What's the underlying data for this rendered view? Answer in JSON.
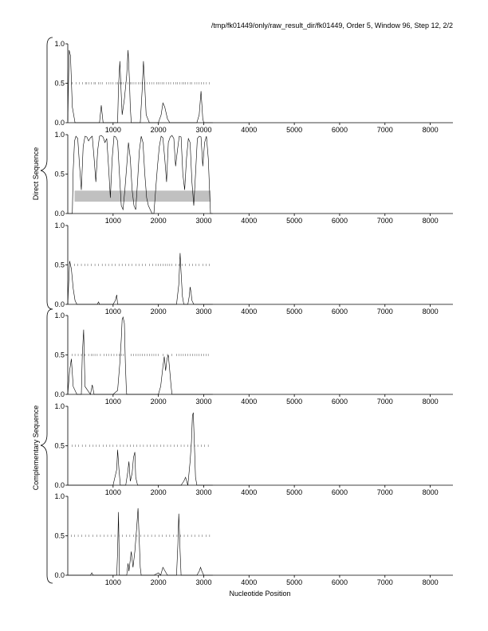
{
  "title": "/tmp/fk01449/only/raw_result_dir/fk01449, Order 5, Window 96, Step 12, 2/2",
  "xlabel": "Nucleotide Position",
  "group_labels": [
    "Direct Sequence",
    "Complementary Sequence"
  ],
  "chart_data": {
    "type": "line",
    "x_range": [
      0,
      8500
    ],
    "x_ticks": [
      1000,
      2000,
      3000,
      4000,
      5000,
      6000,
      7000,
      8000
    ],
    "panels": [
      {
        "group": "Direct Sequence",
        "ylim": [
          0,
          1
        ],
        "y_ticks": [
          0.0,
          0.5,
          1.0
        ],
        "marker_ticks_x": [
          100,
          180,
          260,
          330,
          390,
          420,
          470,
          520,
          580,
          610,
          680,
          720,
          760,
          850,
          900,
          950,
          1000,
          1060,
          1100,
          1150,
          1190,
          1230,
          1280,
          1330,
          1380,
          1420,
          1460,
          1500,
          1560,
          1600,
          1640,
          1700,
          1750,
          1800,
          1850,
          1900,
          1960,
          2000,
          2040,
          2080,
          2120,
          2180,
          2230,
          2270,
          2330,
          2380,
          2420,
          2470,
          2520,
          2560,
          2600,
          2650,
          2700,
          2740,
          2800,
          2850,
          2900,
          2950,
          3000,
          3060,
          3120
        ],
        "x": [
          0,
          30,
          60,
          100,
          160,
          700,
          740,
          780,
          1000,
          1100,
          1120,
          1150,
          1180,
          1200,
          1250,
          1300,
          1330,
          1360,
          1380,
          1400,
          1600,
          1640,
          1670,
          1700,
          1730,
          1800,
          2000,
          2060,
          2100,
          2140,
          2200,
          2250,
          2850,
          2900,
          2940,
          2980,
          3000,
          3200
        ],
        "y": [
          0.02,
          0.92,
          0.85,
          0.2,
          0.0,
          0.0,
          0.22,
          0.0,
          0.0,
          0.0,
          0.45,
          0.78,
          0.35,
          0.1,
          0.3,
          0.6,
          0.92,
          0.55,
          0.2,
          0.0,
          0.0,
          0.4,
          0.78,
          0.45,
          0.1,
          0.0,
          0.0,
          0.1,
          0.25,
          0.2,
          0.05,
          0.0,
          0.0,
          0.1,
          0.4,
          0.05,
          0.0,
          0.0
        ]
      },
      {
        "group": "Direct Sequence",
        "ylim": [
          0,
          1
        ],
        "y_ticks": [
          0.0,
          0.5,
          1.0
        ],
        "band": {
          "x0": 150,
          "x1": 3150,
          "y0": 0.15,
          "y1": 0.29
        },
        "x": [
          0,
          100,
          120,
          150,
          180,
          220,
          260,
          300,
          340,
          380,
          420,
          460,
          500,
          540,
          580,
          620,
          660,
          700,
          740,
          780,
          820,
          860,
          900,
          940,
          980,
          1020,
          1060,
          1100,
          1140,
          1180,
          1220,
          1260,
          1300,
          1340,
          1380,
          1420,
          1460,
          1500,
          1540,
          1580,
          1620,
          1660,
          1700,
          1740,
          1780,
          1820,
          1860,
          1900,
          1940,
          1980,
          2020,
          2060,
          2100,
          2140,
          2180,
          2220,
          2260,
          2300,
          2340,
          2380,
          2420,
          2460,
          2500,
          2540,
          2580,
          2620,
          2660,
          2700,
          2740,
          2780,
          2820,
          2860,
          2900,
          2940,
          2980,
          3020,
          3060,
          3100,
          3150,
          3200
        ],
        "y": [
          0.0,
          0.0,
          0.55,
          0.92,
          0.98,
          0.95,
          0.6,
          0.3,
          0.85,
          0.98,
          0.97,
          0.92,
          0.96,
          0.98,
          0.7,
          0.4,
          0.8,
          0.98,
          0.99,
          0.97,
          0.9,
          0.95,
          0.6,
          0.2,
          0.7,
          0.98,
          0.97,
          0.92,
          0.5,
          0.1,
          0.05,
          0.3,
          0.6,
          0.9,
          0.7,
          0.3,
          0.1,
          0.05,
          0.4,
          0.8,
          0.98,
          0.9,
          0.5,
          0.2,
          0.1,
          0.05,
          0.0,
          0.0,
          0.3,
          0.6,
          0.85,
          0.98,
          0.96,
          0.7,
          0.4,
          0.9,
          0.97,
          0.99,
          0.95,
          0.6,
          0.8,
          0.98,
          0.97,
          0.5,
          0.3,
          0.7,
          0.95,
          0.9,
          0.4,
          0.1,
          0.5,
          0.95,
          0.98,
          0.97,
          0.6,
          0.9,
          0.98,
          0.7,
          0.0,
          0.0
        ]
      },
      {
        "group": "Direct Sequence",
        "ylim": [
          0,
          1
        ],
        "y_ticks": [
          0.0,
          0.5,
          1.0
        ],
        "marker_ticks_x": [
          150,
          220,
          300,
          380,
          440,
          520,
          600,
          680,
          760,
          830,
          900,
          980,
          1050,
          1130,
          1200,
          1280,
          1350,
          1420,
          1500,
          1570,
          1650,
          1720,
          1800,
          1870,
          1950,
          2000,
          2050,
          2100,
          2150,
          2200,
          2250,
          2300,
          2380,
          2450,
          2520,
          2600,
          2680,
          2750,
          2830,
          2900,
          2980,
          3050,
          3120
        ],
        "x": [
          0,
          40,
          80,
          120,
          160,
          200,
          650,
          680,
          700,
          1000,
          1050,
          1080,
          1100,
          2400,
          2450,
          2480,
          2500,
          2530,
          2560,
          2600,
          2650,
          2680,
          2700,
          2720,
          2740,
          2780,
          3200
        ],
        "y": [
          0.0,
          0.55,
          0.45,
          0.2,
          0.05,
          0.0,
          0.0,
          0.03,
          0.0,
          0.0,
          0.05,
          0.12,
          0.0,
          0.0,
          0.25,
          0.65,
          0.4,
          0.1,
          0.0,
          0.0,
          0.0,
          0.1,
          0.22,
          0.15,
          0.05,
          0.0,
          0.0
        ]
      },
      {
        "group": "Complementary Sequence",
        "ylim": [
          0,
          1
        ],
        "y_ticks": [
          0.0,
          0.5,
          1.0
        ],
        "marker_ticks_x": [
          100,
          160,
          230,
          300,
          380,
          460,
          520,
          560,
          600,
          650,
          720,
          800,
          850,
          900,
          960,
          1020,
          1080,
          1130,
          1180,
          1230,
          1400,
          1450,
          1500,
          1550,
          1600,
          1650,
          1700,
          1750,
          1800,
          1850,
          1900,
          1950,
          2000,
          2100,
          2200,
          2300,
          2400,
          2450,
          2500,
          2550,
          2600,
          2650,
          2700,
          2750,
          2800,
          2850,
          2900,
          2950,
          3000,
          3050,
          3100
        ],
        "x": [
          0,
          40,
          80,
          120,
          200,
          300,
          320,
          350,
          380,
          500,
          540,
          580,
          1000,
          1100,
          1150,
          1180,
          1200,
          1220,
          1250,
          1270,
          1290,
          1300,
          2000,
          2050,
          2100,
          2130,
          2160,
          2190,
          2220,
          2250,
          2280,
          2300,
          3200
        ],
        "y": [
          0.0,
          0.3,
          0.45,
          0.1,
          0.0,
          0.0,
          0.5,
          0.82,
          0.1,
          0.0,
          0.12,
          0.0,
          0.0,
          0.05,
          0.4,
          0.7,
          0.95,
          0.98,
          0.9,
          0.4,
          0.1,
          0.0,
          0.0,
          0.1,
          0.35,
          0.48,
          0.3,
          0.45,
          0.5,
          0.3,
          0.1,
          0.0,
          0.0
        ]
      },
      {
        "group": "Complementary Sequence",
        "ylim": [
          0,
          1
        ],
        "y_ticks": [
          0.0,
          0.5,
          1.0
        ],
        "marker_ticks_x": [
          100,
          170,
          240,
          320,
          400,
          480,
          560,
          630,
          700,
          780,
          850,
          930,
          1000,
          1080,
          1160,
          1230,
          1310,
          1380,
          1450,
          1520,
          1600,
          1670,
          1750,
          1820,
          1900,
          1970,
          2050,
          2120,
          2200,
          2270,
          2350,
          2420,
          2500,
          2570,
          2650,
          2720,
          2800,
          2870,
          2950,
          3020,
          3100
        ],
        "x": [
          0,
          1000,
          1080,
          1100,
          1130,
          1160,
          1200,
          1280,
          1320,
          1350,
          1380,
          1420,
          1450,
          1480,
          1500,
          1540,
          1580,
          1600,
          2000,
          2500,
          2560,
          2600,
          2650,
          2700,
          2730,
          2750,
          2770,
          2790,
          2820,
          2850,
          3200
        ],
        "y": [
          0.0,
          0.0,
          0.2,
          0.45,
          0.2,
          0.0,
          0.0,
          0.0,
          0.15,
          0.3,
          0.05,
          0.15,
          0.35,
          0.42,
          0.1,
          0.0,
          0.0,
          0.0,
          0.0,
          0.0,
          0.05,
          0.1,
          0.0,
          0.3,
          0.55,
          0.88,
          0.92,
          0.6,
          0.1,
          0.0,
          0.0
        ]
      },
      {
        "group": "Complementary Sequence",
        "ylim": [
          0,
          1
        ],
        "y_ticks": [
          0.0,
          0.5,
          1.0
        ],
        "marker_ticks_x": [
          80,
          150,
          230,
          310,
          390,
          470,
          550,
          640,
          720,
          800,
          880,
          960,
          1040,
          1130,
          1210,
          1290,
          1370,
          1450,
          1530,
          1610,
          1690,
          1770,
          1850,
          1930,
          2010,
          2090,
          2170,
          2250,
          2330,
          2410,
          2490,
          2570,
          2650,
          2730,
          2810,
          2890,
          2970,
          3050,
          3130
        ],
        "x": [
          0,
          500,
          530,
          560,
          1000,
          1080,
          1100,
          1120,
          1140,
          1300,
          1330,
          1350,
          1400,
          1440,
          1480,
          1520,
          1550,
          1580,
          1600,
          1620,
          1700,
          1900,
          2000,
          2050,
          2100,
          2200,
          2350,
          2400,
          2430,
          2450,
          2480,
          2500,
          2850,
          2900,
          2930,
          2960,
          3000,
          3200
        ],
        "y": [
          0.0,
          0.0,
          0.03,
          0.0,
          0.0,
          0.0,
          0.3,
          0.8,
          0.0,
          0.0,
          0.15,
          0.05,
          0.3,
          0.1,
          0.3,
          0.6,
          0.85,
          0.4,
          0.1,
          0.0,
          0.0,
          0.0,
          0.03,
          0.0,
          0.1,
          0.0,
          0.0,
          0.0,
          0.4,
          0.78,
          0.3,
          0.0,
          0.0,
          0.05,
          0.1,
          0.05,
          0.0,
          0.0
        ]
      }
    ]
  }
}
